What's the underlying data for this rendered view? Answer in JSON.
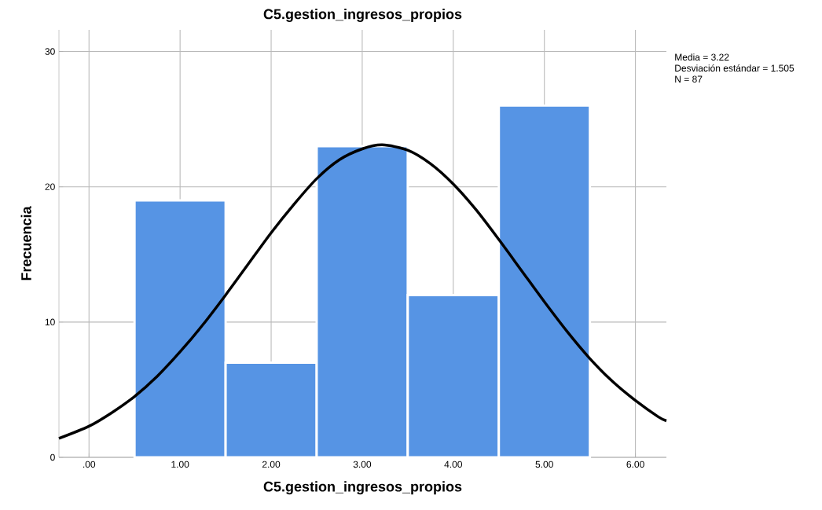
{
  "chart_data": {
    "type": "histogram",
    "title": "C5.gestion_ingresos_propios",
    "xlabel": "C5.gestion_ingresos_propios",
    "ylabel": "Frecuencia",
    "bins": [
      0.5,
      1.5,
      2.5,
      3.5,
      4.5,
      5.5
    ],
    "values": [
      19,
      7,
      23,
      12,
      26
    ],
    "color": "#5694e4",
    "series": [
      {
        "type": "line",
        "color": "#000000",
        "x": [
          -0.33,
          0,
          0.25,
          0.5,
          0.75,
          1,
          1.25,
          1.5,
          1.75,
          2,
          2.25,
          2.5,
          2.75,
          3,
          3.22,
          3.5,
          3.75,
          4,
          4.25,
          4.5,
          4.75,
          5,
          5.25,
          5.5,
          5.75,
          6,
          6.25,
          6.34
        ],
        "values": [
          1.4,
          2.3,
          3.3,
          4.5,
          6.0,
          7.8,
          9.8,
          12.0,
          14.3,
          16.6,
          18.7,
          20.6,
          22.0,
          22.8,
          23.1,
          22.7,
          21.7,
          20.2,
          18.3,
          16.1,
          13.8,
          11.5,
          9.3,
          7.3,
          5.6,
          4.2,
          3.0,
          2.7
        ]
      }
    ],
    "xlim": [
      -0.33,
      6.34
    ],
    "ylim": [
      0,
      31.6
    ],
    "xticks": [
      {
        "value": 0,
        "label": ".00"
      },
      {
        "value": 1,
        "label": "1.00"
      },
      {
        "value": 2,
        "label": "2.00"
      },
      {
        "value": 3,
        "label": "3.00"
      },
      {
        "value": 4,
        "label": "4.00"
      },
      {
        "value": 5,
        "label": "5.00"
      },
      {
        "value": 6,
        "label": "6.00"
      }
    ],
    "yticks": [
      0,
      10,
      20,
      30
    ],
    "grid": true,
    "annotations": [
      "Media = 3.22",
      "Desviación estándar = 1.505",
      "N = 87"
    ]
  }
}
